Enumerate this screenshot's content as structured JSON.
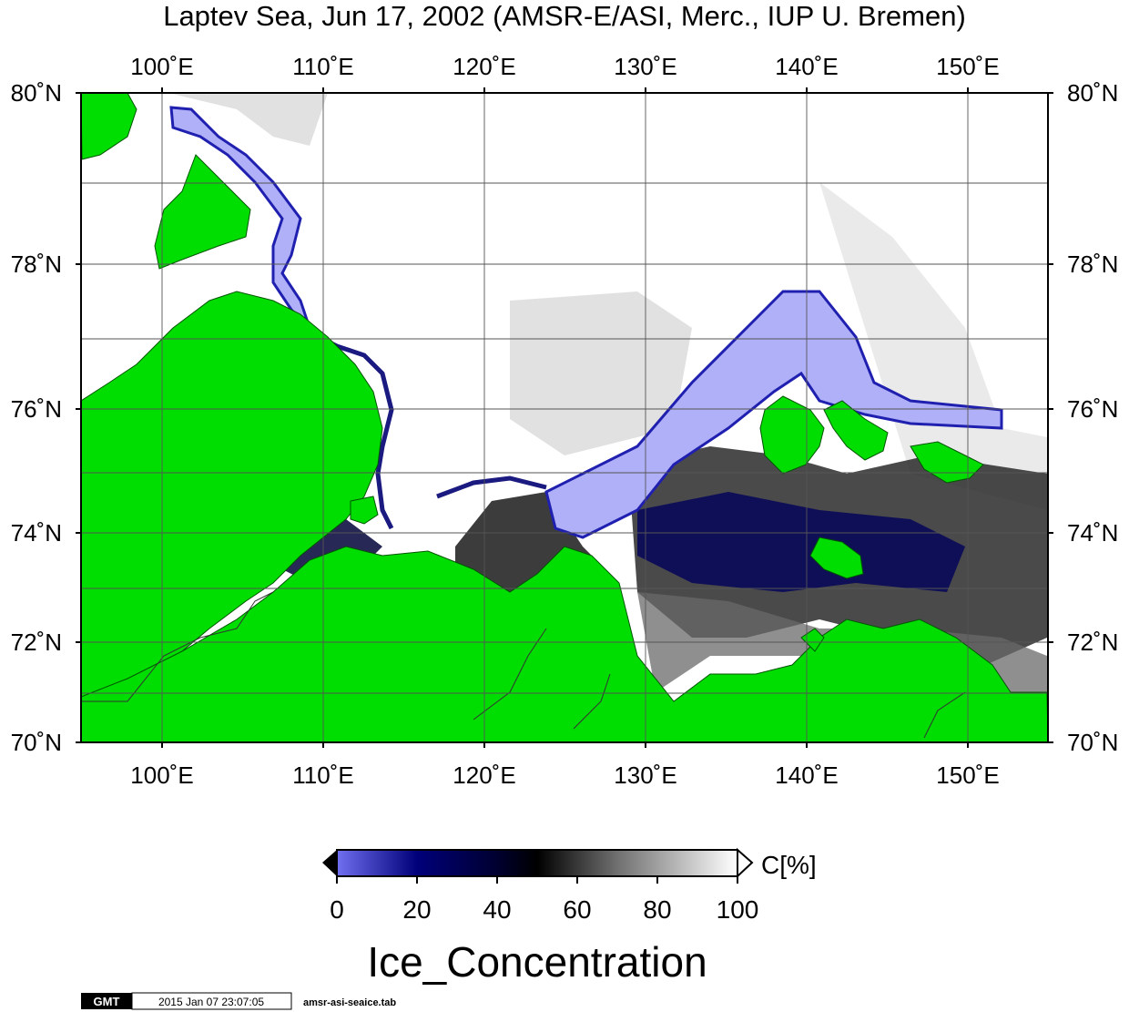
{
  "map": {
    "title": "Laptev Sea, Jun 17, 2002 (AMSR-E/ASI, Merc., IUP U. Bremen)",
    "lon_ticks": [
      "100˚E",
      "110˚E",
      "120˚E",
      "130˚E",
      "140˚E",
      "150˚E"
    ],
    "lat_ticks": [
      "70˚N",
      "72˚N",
      "74˚N",
      "76˚N",
      "78˚N",
      "80˚N"
    ],
    "lon_range": [
      95,
      155
    ],
    "lat_range": [
      70,
      80
    ],
    "projection": "Mercator",
    "land_color": "#00dd00",
    "water_color": "#ffffff",
    "grid": true
  },
  "colorbar": {
    "unit": "C[%]",
    "ticks": [
      "0",
      "20",
      "40",
      "60",
      "80",
      "100"
    ],
    "range": [
      0,
      100
    ],
    "stops": [
      {
        "value": 0,
        "color": "#7070f0"
      },
      {
        "value": 20,
        "color": "#00007a"
      },
      {
        "value": 40,
        "color": "#000030"
      },
      {
        "value": 50,
        "color": "#000000"
      },
      {
        "value": 70,
        "color": "#707070"
      },
      {
        "value": 100,
        "color": "#ffffff"
      }
    ]
  },
  "xlabel": "Ice_Concentration",
  "footer": {
    "logo": "GMT",
    "timestamp": "2015 Jan 07 23:07:05",
    "filename": "amsr-asi-seaice.tab"
  }
}
